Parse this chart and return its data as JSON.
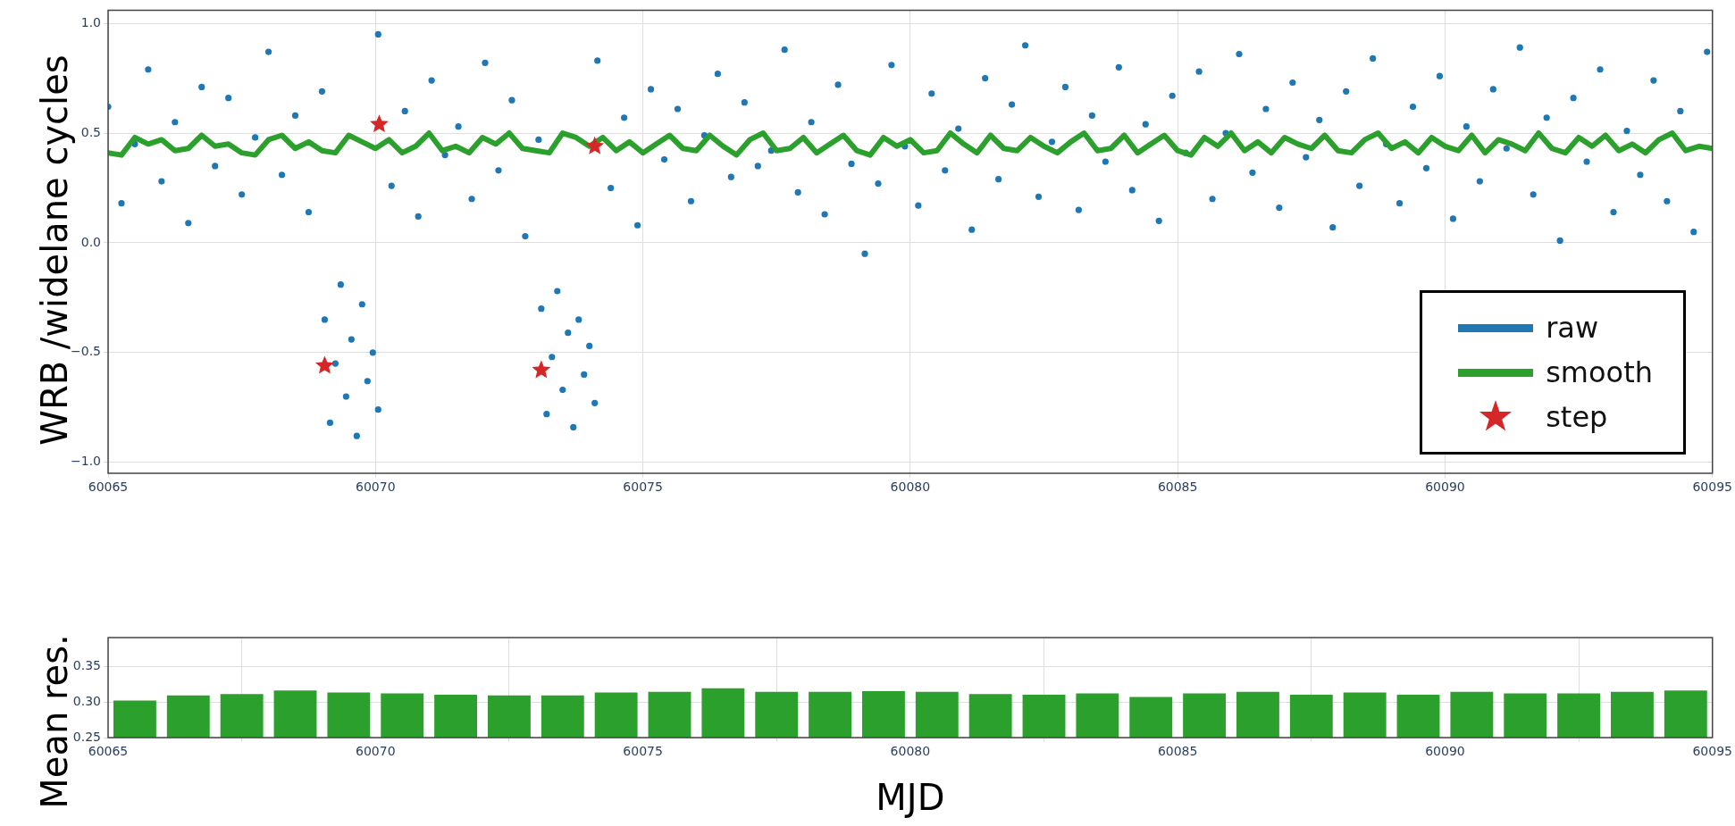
{
  "chart_data": [
    {
      "type": "scatter",
      "ylabel": "WRB /widelane cycles",
      "xlim": [
        60065,
        60095
      ],
      "xticks": [
        60065,
        60070,
        60075,
        60080,
        60085,
        60090,
        60095
      ],
      "ylim": [
        -1.05,
        1.06
      ],
      "yticks": [
        {
          "value": -1,
          "label": "−1.0"
        },
        {
          "value": -0.5,
          "label": "−0.5"
        },
        {
          "value": 0,
          "label": "0.0"
        },
        {
          "value": 0.5,
          "label": "0.5"
        },
        {
          "value": 1,
          "label": "1.0"
        }
      ],
      "grid": true,
      "legend": "bottom right",
      "series": [
        {
          "name": "raw",
          "type": "scatter",
          "color": "#1f77b4",
          "marker": "circle",
          "x": [
            60065,
            60065.25,
            60065.5,
            60065.75,
            60066,
            60066.25,
            60066.5,
            60066.75,
            60067,
            60067.25,
            60067.5,
            60067.75,
            60068,
            60068.25,
            60068.5,
            60068.75,
            60069,
            60069.05,
            60069.15,
            60069.25,
            60069.35,
            60069.45,
            60069.55,
            60069.65,
            60069.75,
            60069.85,
            60069.95,
            60070.05,
            60070.05,
            60070.3,
            60070.55,
            60070.8,
            60071.05,
            60071.3,
            60071.55,
            60071.8,
            60072.05,
            60072.3,
            60072.55,
            60072.8,
            60073.05,
            60073.1,
            60073.2,
            60073.3,
            60073.4,
            60073.5,
            60073.6,
            60073.7,
            60073.8,
            60073.9,
            60074,
            60074.1,
            60074.15,
            60074.4,
            60074.65,
            60074.9,
            60075.15,
            60075.4,
            60075.65,
            60075.9,
            60076.15,
            60076.4,
            60076.65,
            60076.9,
            60077.15,
            60077.4,
            60077.65,
            60077.9,
            60078.15,
            60078.4,
            60078.65,
            60078.9,
            60079.15,
            60079.4,
            60079.65,
            60079.9,
            60080.15,
            60080.4,
            60080.65,
            60080.9,
            60081.15,
            60081.4,
            60081.65,
            60081.9,
            60082.15,
            60082.4,
            60082.65,
            60082.9,
            60083.15,
            60083.4,
            60083.65,
            60083.9,
            60084.15,
            60084.4,
            60084.65,
            60084.9,
            60085.15,
            60085.4,
            60085.65,
            60085.9,
            60086.15,
            60086.4,
            60086.65,
            60086.9,
            60087.15,
            60087.4,
            60087.65,
            60087.9,
            60088.15,
            60088.4,
            60088.65,
            60088.9,
            60089.15,
            60089.4,
            60089.65,
            60089.9,
            60090.15,
            60090.4,
            60090.65,
            60090.9,
            60091.15,
            60091.4,
            60091.65,
            60091.9,
            60092.15,
            60092.4,
            60092.65,
            60092.9,
            60093.15,
            60093.4,
            60093.65,
            60093.9,
            60094.15,
            60094.4,
            60094.65,
            60094.9
          ],
          "values": [
            0.62,
            0.18,
            0.45,
            0.79,
            0.28,
            0.55,
            0.09,
            0.71,
            0.35,
            0.66,
            0.22,
            0.48,
            0.87,
            0.31,
            0.58,
            0.14,
            0.69,
            -0.35,
            -0.82,
            -0.55,
            -0.19,
            -0.7,
            -0.44,
            -0.88,
            -0.28,
            -0.63,
            -0.5,
            -0.76,
            0.95,
            0.26,
            0.6,
            0.12,
            0.74,
            0.4,
            0.53,
            0.2,
            0.82,
            0.33,
            0.65,
            0.03,
            0.47,
            -0.3,
            -0.78,
            -0.52,
            -0.22,
            -0.67,
            -0.41,
            -0.84,
            -0.35,
            -0.6,
            -0.47,
            -0.73,
            0.83,
            0.25,
            0.57,
            0.08,
            0.7,
            0.38,
            0.61,
            0.19,
            0.49,
            0.77,
            0.3,
            0.64,
            0.35,
            0.42,
            0.88,
            0.23,
            0.55,
            0.13,
            0.72,
            0.36,
            -0.05,
            0.27,
            0.81,
            0.44,
            0.17,
            0.68,
            0.33,
            0.52,
            0.06,
            0.75,
            0.29,
            0.63,
            0.9,
            0.21,
            0.46,
            0.71,
            0.15,
            0.58,
            0.37,
            0.8,
            0.24,
            0.54,
            0.1,
            0.67,
            0.41,
            0.78,
            0.2,
            0.5,
            0.86,
            0.32,
            0.61,
            0.16,
            0.73,
            0.39,
            0.56,
            0.07,
            0.69,
            0.26,
            0.84,
            0.45,
            0.18,
            0.62,
            0.34,
            0.76,
            0.11,
            0.53,
            0.28,
            0.7,
            0.43,
            0.89,
            0.22,
            0.57,
            0.01,
            0.66,
            0.37,
            0.79,
            0.14,
            0.51,
            0.31,
            0.74,
            0.19,
            0.6,
            0.05,
            0.87
          ]
        },
        {
          "name": "smooth",
          "type": "line",
          "color": "#2ca02c",
          "marker": "none",
          "x": [
            60065,
            60065.25,
            60065.5,
            60065.75,
            60066,
            60066.25,
            60066.5,
            60066.75,
            60067,
            60067.25,
            60067.5,
            60067.75,
            60068,
            60068.25,
            60068.5,
            60068.75,
            60069,
            60069.25,
            60069.5,
            60069.75,
            60070,
            60070.25,
            60070.5,
            60070.75,
            60071,
            60071.25,
            60071.5,
            60071.75,
            60072,
            60072.25,
            60072.5,
            60072.75,
            60073,
            60073.25,
            60073.5,
            60073.75,
            60074,
            60074.25,
            60074.5,
            60074.75,
            60075,
            60075.25,
            60075.5,
            60075.75,
            60076,
            60076.25,
            60076.5,
            60076.75,
            60077,
            60077.25,
            60077.5,
            60077.75,
            60078,
            60078.25,
            60078.5,
            60078.75,
            60079,
            60079.25,
            60079.5,
            60079.75,
            60080,
            60080.25,
            60080.5,
            60080.75,
            60081,
            60081.25,
            60081.5,
            60081.75,
            60082,
            60082.25,
            60082.5,
            60082.75,
            60083,
            60083.25,
            60083.5,
            60083.75,
            60084,
            60084.25,
            60084.5,
            60084.75,
            60085,
            60085.25,
            60085.5,
            60085.75,
            60086,
            60086.25,
            60086.5,
            60086.75,
            60087,
            60087.25,
            60087.5,
            60087.75,
            60088,
            60088.25,
            60088.5,
            60088.75,
            60089,
            60089.25,
            60089.5,
            60089.75,
            60090,
            60090.25,
            60090.5,
            60090.75,
            60091,
            60091.25,
            60091.5,
            60091.75,
            60092,
            60092.25,
            60092.5,
            60092.75,
            60093,
            60093.25,
            60093.5,
            60093.75,
            60094,
            60094.25,
            60094.5,
            60094.75,
            60095
          ],
          "values": [
            0.41,
            0.4,
            0.48,
            0.45,
            0.47,
            0.42,
            0.43,
            0.49,
            0.44,
            0.45,
            0.41,
            0.4,
            0.47,
            0.49,
            0.43,
            0.46,
            0.42,
            0.41,
            0.49,
            0.46,
            0.43,
            0.47,
            0.41,
            0.44,
            0.5,
            0.42,
            0.44,
            0.41,
            0.48,
            0.45,
            0.5,
            0.43,
            0.42,
            0.41,
            0.5,
            0.48,
            0.44,
            0.48,
            0.42,
            0.46,
            0.41,
            0.45,
            0.49,
            0.43,
            0.42,
            0.49,
            0.44,
            0.4,
            0.47,
            0.5,
            0.42,
            0.43,
            0.48,
            0.41,
            0.45,
            0.49,
            0.42,
            0.4,
            0.48,
            0.44,
            0.47,
            0.41,
            0.42,
            0.5,
            0.45,
            0.41,
            0.49,
            0.43,
            0.42,
            0.48,
            0.44,
            0.41,
            0.46,
            0.5,
            0.42,
            0.43,
            0.49,
            0.41,
            0.45,
            0.49,
            0.42,
            0.4,
            0.48,
            0.44,
            0.5,
            0.42,
            0.46,
            0.41,
            0.48,
            0.45,
            0.43,
            0.49,
            0.42,
            0.41,
            0.47,
            0.5,
            0.43,
            0.46,
            0.41,
            0.48,
            0.44,
            0.42,
            0.49,
            0.41,
            0.47,
            0.45,
            0.42,
            0.5,
            0.43,
            0.41,
            0.48,
            0.44,
            0.49,
            0.42,
            0.45,
            0.41,
            0.47,
            0.5,
            0.42,
            0.44,
            0.43
          ]
        },
        {
          "name": "step",
          "type": "scatter",
          "color": "#d62728",
          "marker": "star",
          "x": [
            60069.05,
            60070.07,
            60073.1,
            60074.1
          ],
          "values": [
            -0.56,
            0.54,
            -0.58,
            0.44
          ]
        }
      ]
    },
    {
      "type": "bar",
      "ylabel": "Mean res.",
      "xlabel": "MJD",
      "x": [
        60065.5,
        60066.5,
        60067.5,
        60068.5,
        60069.5,
        60070.5,
        60071.5,
        60072.5,
        60073.5,
        60074.5,
        60075.5,
        60076.5,
        60077.5,
        60078.5,
        60079.5,
        60080.5,
        60081.5,
        60082.5,
        60083.5,
        60084.5,
        60085.5,
        60086.5,
        60087.5,
        60088.5,
        60089.5,
        60090.5,
        60091.5,
        60092.5,
        60093.5,
        60094.5
      ],
      "values": [
        0.302,
        0.309,
        0.311,
        0.316,
        0.313,
        0.312,
        0.31,
        0.309,
        0.309,
        0.313,
        0.314,
        0.319,
        0.314,
        0.314,
        0.315,
        0.314,
        0.311,
        0.31,
        0.312,
        0.307,
        0.312,
        0.314,
        0.31,
        0.313,
        0.31,
        0.314,
        0.312,
        0.312,
        0.314,
        0.316
      ],
      "color": "#2ca02c",
      "xlim": [
        60065,
        60095
      ],
      "xticks": [
        60065,
        60070,
        60075,
        60080,
        60085,
        60090,
        60095
      ],
      "ylim": [
        0.25,
        0.39
      ],
      "yticks": [
        {
          "value": 0.25,
          "label": "0.25"
        },
        {
          "value": 0.3,
          "label": "0.30"
        },
        {
          "value": 0.35,
          "label": "0.35"
        }
      ],
      "grid": true
    }
  ]
}
